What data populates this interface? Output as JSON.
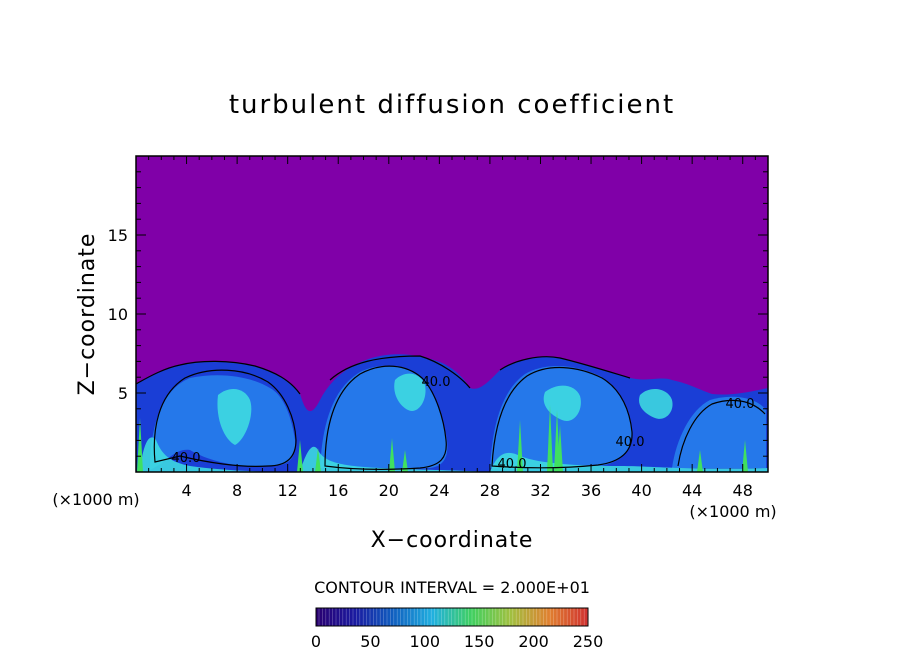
{
  "chart_data": {
    "type": "heatmap",
    "title": "turbulent diffusion coefficient",
    "xlabel": "X−coordinate",
    "ylabel": "Z−coordinate",
    "x_unit_left": "(×1000 m)",
    "x_unit_right": "(×1000 m)",
    "xlim": [
      0,
      50
    ],
    "ylim": [
      0,
      20
    ],
    "x_ticks": [
      4,
      8,
      12,
      16,
      20,
      24,
      28,
      32,
      36,
      40,
      44,
      48
    ],
    "y_ticks": [
      5,
      10,
      15
    ],
    "contour_interval_text": "CONTOUR INTERVAL = 2.000E+01",
    "contour_labels": [
      "40.0",
      "40.0",
      "40.0",
      "40.0",
      "40.0"
    ],
    "colorbar": {
      "min": 0,
      "max": 250,
      "ticks": [
        0,
        50,
        100,
        150,
        200,
        250
      ],
      "colors": [
        "#2a0070",
        "#1a1aa0",
        "#1060c0",
        "#20b0e0",
        "#40d060",
        "#a0c040",
        "#e08030",
        "#d03030"
      ]
    },
    "background_color": "#8000a8",
    "field_colors": {
      "low": "#1a3ed6",
      "mid": "#2a8cf0",
      "high": "#40e0e0",
      "peak": "#40e060"
    },
    "grid": false,
    "legend": "bottom"
  }
}
